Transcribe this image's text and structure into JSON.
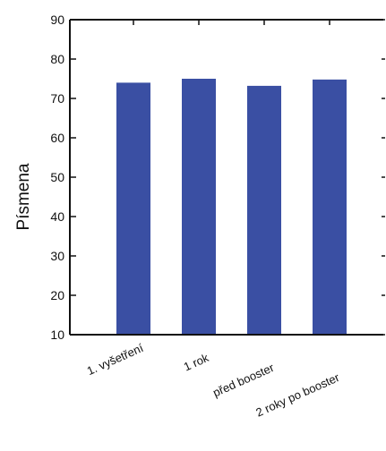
{
  "chart_data": {
    "type": "bar",
    "categories": [
      "1. vyšetření",
      "1 rok",
      "před booster",
      "2 roky po booster"
    ],
    "values": [
      74,
      75,
      73.2,
      74.8
    ],
    "xlabel": "",
    "ylabel": "Písmena",
    "ylim": [
      10,
      90
    ],
    "yticks": [
      10,
      20,
      30,
      40,
      50,
      60,
      70,
      80,
      90
    ],
    "bar_color": "#3a4fa3",
    "axis_color": "#111111",
    "grid": false,
    "legend": "none"
  }
}
